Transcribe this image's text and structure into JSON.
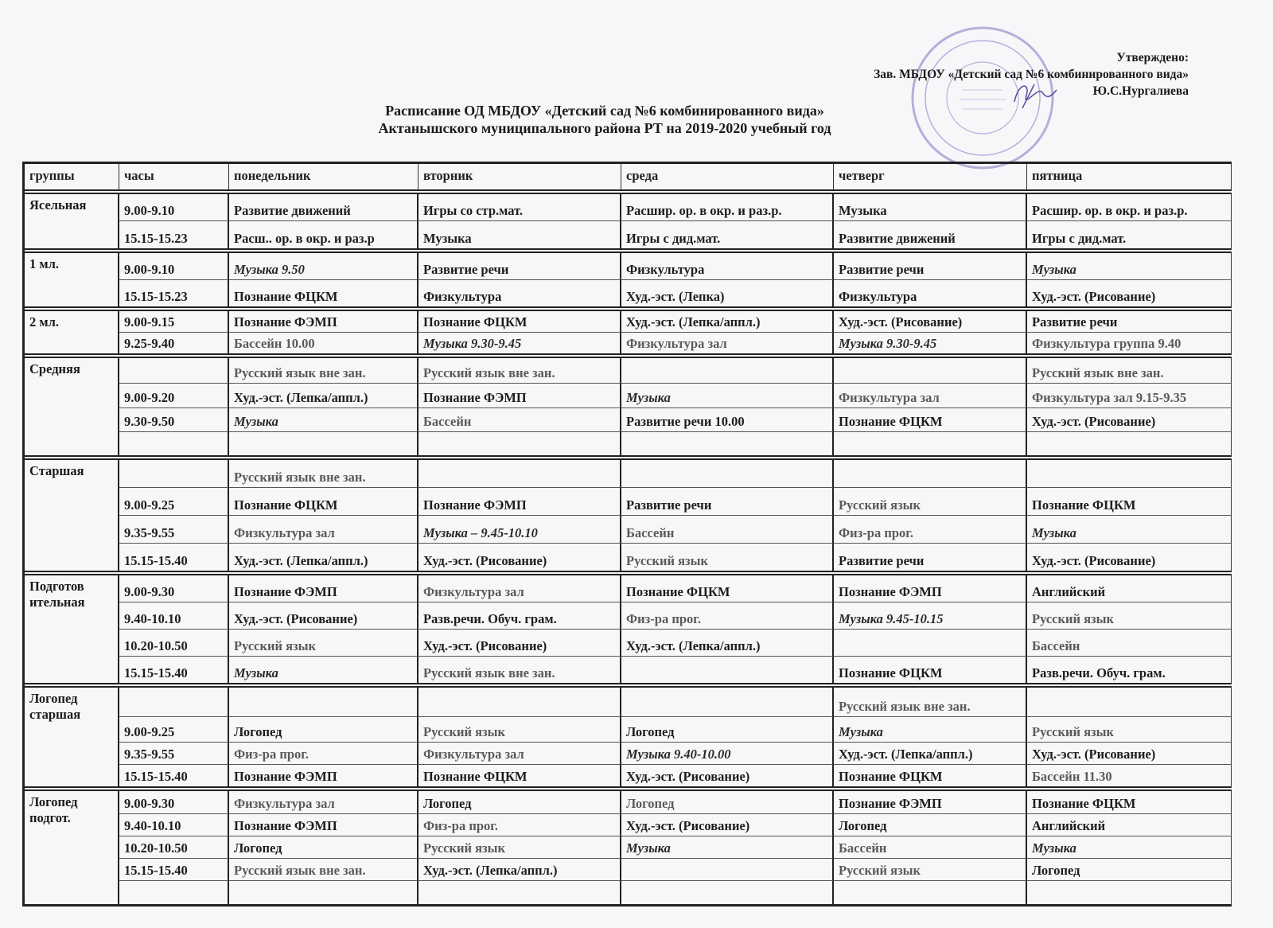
{
  "approval": {
    "line1": "Утверждено:",
    "line2": "Зав. МБДОУ «Детский сад №6 комбинированного вида»",
    "line3": "Ю.С.Нургалиева"
  },
  "title": {
    "line1": "Расписание ОД  МБДОУ «Детский сад №6 комбинированного вида»",
    "line2": "Актанышского муниципального района  РТ  на 2019-2020  учебный год"
  },
  "stamp_text": "Детский сад комбинированного вида №6",
  "colors": {
    "ink": "#1d1d1d",
    "light_ink": "#5a5a5a",
    "stamp": "#8a6fc4"
  },
  "table": {
    "columns": [
      "группы",
      "часы",
      "понедельник",
      "вторник",
      "среда",
      "четверг",
      "пятница"
    ],
    "groups": [
      {
        "name": "Ясельная",
        "rows": [
          {
            "time": "9.00-9.10",
            "cells": [
              {
                "t": "Развитие движений",
                "s": "b"
              },
              {
                "t": "Игры со стр.мат.",
                "s": "b"
              },
              {
                "t": "Расшир. ор. в окр. и раз.р.",
                "s": "b"
              },
              {
                "t": "Музыка",
                "s": "b"
              },
              {
                "t": "Расшир. ор. в окр. и раз.р.",
                "s": "b"
              }
            ]
          },
          {
            "time": "15.15-15.23",
            "cells": [
              {
                "t": "Расш.. ор. в окр. и раз.р",
                "s": "b"
              },
              {
                "t": "Музыка",
                "s": "b"
              },
              {
                "t": "Игры с дид.мат.",
                "s": "b"
              },
              {
                "t": "Развитие движений",
                "s": "b"
              },
              {
                "t": "Игры с дид.мат.",
                "s": "b"
              }
            ]
          }
        ]
      },
      {
        "name": "1 мл.",
        "rows": [
          {
            "time": "9.00-9.10",
            "cells": [
              {
                "t": "Музыка 9.50",
                "s": "i"
              },
              {
                "t": "Развитие речи",
                "s": "b"
              },
              {
                "t": "Физкультура",
                "s": "b"
              },
              {
                "t": "Развитие речи",
                "s": "b"
              },
              {
                "t": "Музыка",
                "s": "i"
              }
            ]
          },
          {
            "time": "15.15-15.23",
            "cells": [
              {
                "t": "Познание ФЦКМ",
                "s": "b"
              },
              {
                "t": "Физкультура",
                "s": "b"
              },
              {
                "t": "Худ.-эст. (Лепка)",
                "s": "b"
              },
              {
                "t": "Физкультура",
                "s": "b"
              },
              {
                "t": "Худ.-эст. (Рисование)",
                "s": "b"
              }
            ]
          }
        ]
      },
      {
        "name": "2 мл.",
        "rows": [
          {
            "time": "9.00-9.15",
            "cells": [
              {
                "t": "Познание ФЭМП",
                "s": "b"
              },
              {
                "t": "Познание ФЦКМ",
                "s": "b"
              },
              {
                "t": "Худ.-эст. (Лепка/аппл.)",
                "s": "b"
              },
              {
                "t": "Худ.-эст. (Рисование)",
                "s": "b"
              },
              {
                "t": "Развитие речи",
                "s": "b"
              }
            ]
          },
          {
            "time": "9.25-9.40",
            "cells": [
              {
                "t": "Бассейн 10.00",
                "s": "g"
              },
              {
                "t": "Музыка 9.30-9.45",
                "s": "i"
              },
              {
                "t": "Физкультура зал",
                "s": "g"
              },
              {
                "t": "Музыка 9.30-9.45",
                "s": "i"
              },
              {
                "t": "Физкультура группа 9.40",
                "s": "g"
              }
            ]
          }
        ]
      },
      {
        "name": "Средняя",
        "rows": [
          {
            "time": "",
            "cells": [
              {
                "t": "Русский язык вне зан.",
                "s": "g"
              },
              {
                "t": "Русский язык вне зан.",
                "s": "g"
              },
              {
                "t": "",
                "s": "b"
              },
              {
                "t": "",
                "s": "b"
              },
              {
                "t": "Русский язык вне зан.",
                "s": "g"
              }
            ]
          },
          {
            "time": "9.00-9.20",
            "cells": [
              {
                "t": "Худ.-эст. (Лепка/аппл.)",
                "s": "b"
              },
              {
                "t": "Познание ФЭМП",
                "s": "b"
              },
              {
                "t": "Музыка",
                "s": "i"
              },
              {
                "t": "Физкультура зал",
                "s": "g"
              },
              {
                "t": "Физкультура зал 9.15-9.35",
                "s": "g"
              }
            ]
          },
          {
            "time": "9.30-9.50",
            "cells": [
              {
                "t": "Музыка",
                "s": "i"
              },
              {
                "t": "Бассейн",
                "s": "g"
              },
              {
                "t": "Развитие речи 10.00",
                "s": "b"
              },
              {
                "t": "Познание ФЦКМ",
                "s": "b"
              },
              {
                "t": "Худ.-эст. (Рисование)",
                "s": "b"
              }
            ]
          },
          {
            "time": "",
            "cells": [
              {
                "t": "",
                "s": "b"
              },
              {
                "t": "",
                "s": "b"
              },
              {
                "t": "",
                "s": "b"
              },
              {
                "t": "",
                "s": "b"
              },
              {
                "t": "",
                "s": "b"
              }
            ]
          }
        ]
      },
      {
        "name": "Старшая",
        "rows": [
          {
            "time": "",
            "cells": [
              {
                "t": "Русский язык вне зан.",
                "s": "g"
              },
              {
                "t": "",
                "s": "b"
              },
              {
                "t": "",
                "s": "b"
              },
              {
                "t": "",
                "s": "b"
              },
              {
                "t": "",
                "s": "b"
              }
            ]
          },
          {
            "time": "9.00-9.25",
            "cells": [
              {
                "t": "Познание ФЦКМ",
                "s": "b"
              },
              {
                "t": "Познание ФЭМП",
                "s": "b"
              },
              {
                "t": "Развитие речи",
                "s": "b"
              },
              {
                "t": "Русский язык",
                "s": "g"
              },
              {
                "t": "Познание ФЦКМ",
                "s": "b"
              }
            ]
          },
          {
            "time": "9.35-9.55",
            "cells": [
              {
                "t": "Физкультура зал",
                "s": "g"
              },
              {
                "t": "Музыка – 9.45-10.10",
                "s": "i"
              },
              {
                "t": "Бассейн",
                "s": "g"
              },
              {
                "t": "Физ-ра прог.",
                "s": "g"
              },
              {
                "t": "Музыка",
                "s": "i"
              }
            ]
          },
          {
            "time": "15.15-15.40",
            "cells": [
              {
                "t": "Худ.-эст. (Лепка/аппл.)",
                "s": "b"
              },
              {
                "t": "Худ.-эст. (Рисование)",
                "s": "b"
              },
              {
                "t": "Русский язык",
                "s": "g"
              },
              {
                "t": "Развитие речи",
                "s": "b"
              },
              {
                "t": "Худ.-эст. (Рисование)",
                "s": "b"
              }
            ]
          }
        ]
      },
      {
        "name": "Подготов\nительная",
        "rows": [
          {
            "time": "9.00-9.30",
            "cells": [
              {
                "t": "Познание ФЭМП",
                "s": "b"
              },
              {
                "t": "Физкультура зал",
                "s": "g"
              },
              {
                "t": "Познание ФЦКМ",
                "s": "b"
              },
              {
                "t": "Познание ФЭМП",
                "s": "b"
              },
              {
                "t": "Английский",
                "s": "b"
              }
            ]
          },
          {
            "time": "9.40-10.10",
            "cells": [
              {
                "t": "Худ.-эст. (Рисование)",
                "s": "b"
              },
              {
                "t": "Разв.речи. Обуч. грам.",
                "s": "b"
              },
              {
                "t": "Физ-ра прог.",
                "s": "g"
              },
              {
                "t": "Музыка 9.45-10.15",
                "s": "i"
              },
              {
                "t": "Русский язык",
                "s": "g"
              }
            ]
          },
          {
            "time": "10.20-10.50",
            "cells": [
              {
                "t": "Русский язык",
                "s": "g"
              },
              {
                "t": "Худ.-эст. (Рисование)",
                "s": "b"
              },
              {
                "t": "Худ.-эст. (Лепка/аппл.)",
                "s": "b"
              },
              {
                "t": "",
                "s": "b"
              },
              {
                "t": "Бассейн",
                "s": "g"
              }
            ]
          },
          {
            "time": "15.15-15.40",
            "cells": [
              {
                "t": "Музыка",
                "s": "i"
              },
              {
                "t": "Русский язык вне зан.",
                "s": "g"
              },
              {
                "t": "",
                "s": "b"
              },
              {
                "t": "Познание ФЦКМ",
                "s": "b"
              },
              {
                "t": "Разв.речи. Обуч. грам.",
                "s": "b"
              }
            ]
          }
        ]
      },
      {
        "name": "Логопед\nстаршая",
        "rows": [
          {
            "time": "",
            "cells": [
              {
                "t": "",
                "s": "b"
              },
              {
                "t": "",
                "s": "b"
              },
              {
                "t": "",
                "s": "b"
              },
              {
                "t": "Русский язык вне зан.",
                "s": "g"
              },
              {
                "t": "",
                "s": "b"
              }
            ]
          },
          {
            "time": "9.00-9.25",
            "cells": [
              {
                "t": "Логопед",
                "s": "b"
              },
              {
                "t": "Русский язык",
                "s": "g"
              },
              {
                "t": "Логопед",
                "s": "b"
              },
              {
                "t": "Музыка",
                "s": "i"
              },
              {
                "t": "Русский язык",
                "s": "g"
              }
            ]
          },
          {
            "time": "9.35-9.55",
            "cells": [
              {
                "t": "Физ-ра прог.",
                "s": "g"
              },
              {
                "t": "Физкультура зал",
                "s": "g"
              },
              {
                "t": "Музыка 9.40-10.00",
                "s": "i"
              },
              {
                "t": "Худ.-эст. (Лепка/аппл.)",
                "s": "b"
              },
              {
                "t": "Худ.-эст. (Рисование)",
                "s": "b"
              }
            ]
          },
          {
            "time": "15.15-15.40",
            "cells": [
              {
                "t": "Познание ФЭМП",
                "s": "b"
              },
              {
                "t": "Познание ФЦКМ",
                "s": "b"
              },
              {
                "t": "Худ.-эст. (Рисование)",
                "s": "b"
              },
              {
                "t": "Познание ФЦКМ",
                "s": "b"
              },
              {
                "t": "Бассейн 11.30",
                "s": "g"
              }
            ]
          }
        ]
      },
      {
        "name": "Логопед\nподгот.",
        "rows": [
          {
            "time": "9.00-9.30",
            "cells": [
              {
                "t": "Физкультура зал",
                "s": "g"
              },
              {
                "t": "Логопед",
                "s": "b"
              },
              {
                "t": "Логопед",
                "s": "g"
              },
              {
                "t": "Познание ФЭМП",
                "s": "b"
              },
              {
                "t": "Познание ФЦКМ",
                "s": "b"
              }
            ]
          },
          {
            "time": "9.40-10.10",
            "cells": [
              {
                "t": "Познание ФЭМП",
                "s": "b"
              },
              {
                "t": "Физ-ра прог.",
                "s": "g"
              },
              {
                "t": "Худ.-эст. (Рисование)",
                "s": "b"
              },
              {
                "t": "Логопед",
                "s": "b"
              },
              {
                "t": "Английский",
                "s": "b"
              }
            ]
          },
          {
            "time": "10.20-10.50",
            "cells": [
              {
                "t": "Логопед",
                "s": "b"
              },
              {
                "t": "Русский язык",
                "s": "g"
              },
              {
                "t": "Музыка",
                "s": "i"
              },
              {
                "t": "Бассейн",
                "s": "g"
              },
              {
                "t": "Музыка",
                "s": "i"
              }
            ]
          },
          {
            "time": "15.15-15.40",
            "cells": [
              {
                "t": "Русский язык вне зан.",
                "s": "g"
              },
              {
                "t": "Худ.-эст. (Лепка/аппл.)",
                "s": "b"
              },
              {
                "t": "",
                "s": "b"
              },
              {
                "t": "Русский язык",
                "s": "g"
              },
              {
                "t": "Логопед",
                "s": "b"
              }
            ]
          },
          {
            "time": "",
            "cells": [
              {
                "t": "",
                "s": "b"
              },
              {
                "t": "",
                "s": "b"
              },
              {
                "t": "",
                "s": "b"
              },
              {
                "t": "",
                "s": "b"
              },
              {
                "t": "",
                "s": "b"
              }
            ]
          }
        ]
      }
    ]
  }
}
